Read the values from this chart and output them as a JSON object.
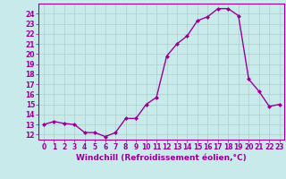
{
  "x": [
    0,
    1,
    2,
    3,
    4,
    5,
    6,
    7,
    8,
    9,
    10,
    11,
    12,
    13,
    14,
    15,
    16,
    17,
    18,
    19,
    20,
    21,
    22,
    23
  ],
  "y": [
    13.0,
    13.3,
    13.1,
    13.0,
    12.2,
    12.2,
    11.8,
    12.2,
    13.6,
    13.6,
    15.0,
    15.7,
    19.8,
    21.0,
    21.8,
    23.3,
    23.7,
    24.5,
    24.5,
    23.8,
    17.5,
    16.3,
    14.8,
    15.0
  ],
  "color": "#990099",
  "bg_color": "#c8eaea",
  "grid_color": "#b0cccc",
  "xlabel": "Windchill (Refroidissement éolien,°C)",
  "ylim": [
    11.5,
    25.0
  ],
  "xlim": [
    -0.5,
    23.5
  ],
  "yticks": [
    12,
    13,
    14,
    15,
    16,
    17,
    18,
    19,
    20,
    21,
    22,
    23,
    24
  ],
  "xticks": [
    0,
    1,
    2,
    3,
    4,
    5,
    6,
    7,
    8,
    9,
    10,
    11,
    12,
    13,
    14,
    15,
    16,
    17,
    18,
    19,
    20,
    21,
    22,
    23
  ],
  "marker": "D",
  "marker_size": 2.0,
  "line_width": 1.0,
  "tick_fontsize": 5.5,
  "xlabel_fontsize": 6.5
}
